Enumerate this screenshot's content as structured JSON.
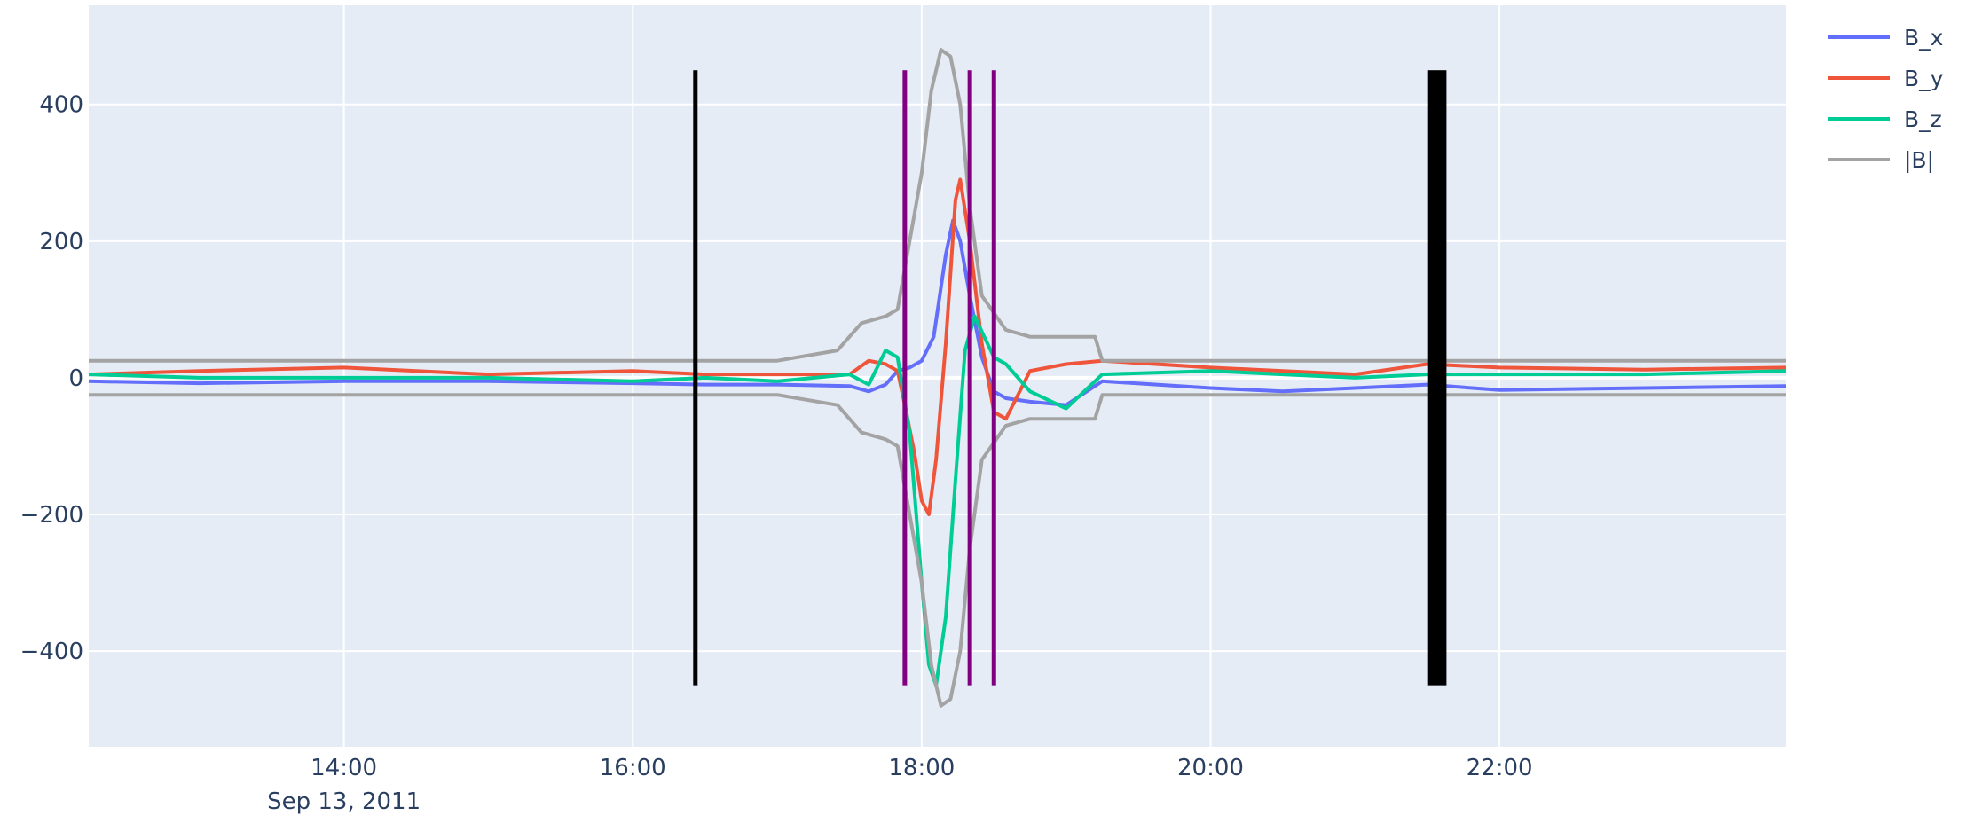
{
  "chart_data": {
    "type": "line",
    "title": "",
    "xlabel": "",
    "ylabel": "",
    "x_axis": {
      "range": [
        "2011-09-13 12:14",
        "2011-09-13 23:59"
      ],
      "tick_values": [
        "14:00",
        "16:00",
        "18:00",
        "20:00",
        "22:00"
      ],
      "tick_labels": [
        "14:00",
        "16:00",
        "18:00",
        "20:00",
        "22:00"
      ],
      "date_label": "Sep 13, 2011"
    },
    "y_axis": {
      "range": [
        -540,
        545
      ],
      "tick_values": [
        400,
        200,
        0,
        -200,
        -400
      ],
      "tick_labels": [
        "400",
        "200",
        "0",
        "−200",
        "−400"
      ]
    },
    "grid": true,
    "legend_position": "top-right",
    "plot_background": "#e5ecf6",
    "series": [
      {
        "name": "B_x",
        "color": "#636efa",
        "points": [
          [
            "12:14",
            -5
          ],
          [
            "13:00",
            -8
          ],
          [
            "14:00",
            -5
          ],
          [
            "15:00",
            -5
          ],
          [
            "16:00",
            -8
          ],
          [
            "16:30",
            -10
          ],
          [
            "17:00",
            -10
          ],
          [
            "17:30",
            -12
          ],
          [
            "17:38",
            -20
          ],
          [
            "17:45",
            -10
          ],
          [
            "17:50",
            10
          ],
          [
            "17:55",
            15
          ],
          [
            "18:00",
            25
          ],
          [
            "18:05",
            60
          ],
          [
            "18:10",
            180
          ],
          [
            "18:13",
            230
          ],
          [
            "18:16",
            200
          ],
          [
            "18:20",
            120
          ],
          [
            "18:25",
            30
          ],
          [
            "18:30",
            -20
          ],
          [
            "18:35",
            -30
          ],
          [
            "18:45",
            -35
          ],
          [
            "19:00",
            -40
          ],
          [
            "19:15",
            -5
          ],
          [
            "20:00",
            -15
          ],
          [
            "20:30",
            -20
          ],
          [
            "21:00",
            -15
          ],
          [
            "21:30",
            -10
          ],
          [
            "22:00",
            -18
          ],
          [
            "23:00",
            -15
          ],
          [
            "23:59",
            -12
          ]
        ]
      },
      {
        "name": "B_y",
        "color": "#ef553b",
        "points": [
          [
            "12:14",
            5
          ],
          [
            "13:00",
            10
          ],
          [
            "14:00",
            15
          ],
          [
            "15:00",
            5
          ],
          [
            "16:00",
            10
          ],
          [
            "16:30",
            5
          ],
          [
            "17:00",
            5
          ],
          [
            "17:30",
            5
          ],
          [
            "17:38",
            25
          ],
          [
            "17:45",
            20
          ],
          [
            "17:50",
            10
          ],
          [
            "17:53",
            -40
          ],
          [
            "17:57",
            -110
          ],
          [
            "18:00",
            -180
          ],
          [
            "18:03",
            -200
          ],
          [
            "18:06",
            -120
          ],
          [
            "18:10",
            50
          ],
          [
            "18:14",
            260
          ],
          [
            "18:16",
            290
          ],
          [
            "18:20",
            200
          ],
          [
            "18:25",
            50
          ],
          [
            "18:30",
            -50
          ],
          [
            "18:35",
            -60
          ],
          [
            "18:45",
            10
          ],
          [
            "19:00",
            20
          ],
          [
            "19:15",
            25
          ],
          [
            "20:00",
            15
          ],
          [
            "20:30",
            10
          ],
          [
            "21:00",
            5
          ],
          [
            "21:30",
            20
          ],
          [
            "22:00",
            15
          ],
          [
            "23:00",
            12
          ],
          [
            "23:59",
            15
          ]
        ]
      },
      {
        "name": "B_z",
        "color": "#00cc96",
        "points": [
          [
            "12:14",
            5
          ],
          [
            "13:00",
            0
          ],
          [
            "14:00",
            0
          ],
          [
            "15:00",
            0
          ],
          [
            "16:00",
            -5
          ],
          [
            "16:30",
            0
          ],
          [
            "17:00",
            -5
          ],
          [
            "17:30",
            5
          ],
          [
            "17:38",
            -10
          ],
          [
            "17:45",
            40
          ],
          [
            "17:50",
            30
          ],
          [
            "17:55",
            -80
          ],
          [
            "18:00",
            -300
          ],
          [
            "18:03",
            -420
          ],
          [
            "18:06",
            -450
          ],
          [
            "18:10",
            -350
          ],
          [
            "18:14",
            -150
          ],
          [
            "18:18",
            40
          ],
          [
            "18:22",
            90
          ],
          [
            "18:26",
            60
          ],
          [
            "18:30",
            30
          ],
          [
            "18:35",
            20
          ],
          [
            "18:45",
            -20
          ],
          [
            "19:00",
            -45
          ],
          [
            "19:15",
            5
          ],
          [
            "20:00",
            10
          ],
          [
            "20:30",
            5
          ],
          [
            "21:00",
            0
          ],
          [
            "21:30",
            5
          ],
          [
            "22:00",
            5
          ],
          [
            "23:00",
            5
          ],
          [
            "23:59",
            10
          ]
        ]
      },
      {
        "name": "|B|",
        "color": "#a3a3a3",
        "points": [
          [
            "12:14",
            25
          ],
          [
            "13:00",
            25
          ],
          [
            "14:00",
            25
          ],
          [
            "15:00",
            25
          ],
          [
            "16:00",
            25
          ],
          [
            "16:30",
            25
          ],
          [
            "17:00",
            25
          ],
          [
            "17:25",
            40
          ],
          [
            "17:35",
            80
          ],
          [
            "17:45",
            90
          ],
          [
            "17:50",
            100
          ],
          [
            "17:55",
            200
          ],
          [
            "18:00",
            300
          ],
          [
            "18:04",
            420
          ],
          [
            "18:08",
            480
          ],
          [
            "18:12",
            470
          ],
          [
            "18:16",
            400
          ],
          [
            "18:20",
            250
          ],
          [
            "18:25",
            120
          ],
          [
            "18:35",
            70
          ],
          [
            "18:45",
            60
          ],
          [
            "19:00",
            60
          ],
          [
            "19:12",
            60
          ],
          [
            "19:15",
            25
          ],
          [
            "20:00",
            25
          ],
          [
            "21:00",
            25
          ],
          [
            "22:00",
            25
          ],
          [
            "23:00",
            25
          ],
          [
            "23:59",
            25
          ]
        ]
      },
      {
        "name": "",
        "color": "#a3a3a3",
        "points": [
          [
            "12:14",
            -25
          ],
          [
            "13:00",
            -25
          ],
          [
            "14:00",
            -25
          ],
          [
            "15:00",
            -25
          ],
          [
            "16:00",
            -25
          ],
          [
            "16:30",
            -25
          ],
          [
            "17:00",
            -25
          ],
          [
            "17:25",
            -40
          ],
          [
            "17:35",
            -80
          ],
          [
            "17:45",
            -90
          ],
          [
            "17:50",
            -100
          ],
          [
            "17:55",
            -200
          ],
          [
            "18:00",
            -300
          ],
          [
            "18:04",
            -420
          ],
          [
            "18:08",
            -480
          ],
          [
            "18:12",
            -470
          ],
          [
            "18:16",
            -400
          ],
          [
            "18:20",
            -250
          ],
          [
            "18:25",
            -120
          ],
          [
            "18:35",
            -70
          ],
          [
            "18:45",
            -60
          ],
          [
            "19:00",
            -60
          ],
          [
            "19:12",
            -60
          ],
          [
            "19:15",
            -25
          ],
          [
            "20:00",
            -25
          ],
          [
            "21:00",
            -25
          ],
          [
            "22:00",
            -25
          ],
          [
            "23:00",
            -25
          ],
          [
            "23:59",
            -25
          ]
        ]
      }
    ],
    "vertical_markers": [
      {
        "from": "16:26",
        "to": "16:26",
        "color": "#000000",
        "y_from": -450,
        "y_to": 450
      },
      {
        "from": "17:53",
        "to": "17:53",
        "color": "#800080",
        "y_from": -450,
        "y_to": 450
      },
      {
        "from": "18:20",
        "to": "18:20",
        "color": "#800080",
        "y_from": -450,
        "y_to": 450
      },
      {
        "from": "18:30",
        "to": "18:30",
        "color": "#800080",
        "y_from": -450,
        "y_to": 450
      },
      {
        "from": "21:30",
        "to": "21:38",
        "color": "#000000",
        "y_from": -450,
        "y_to": 450
      }
    ]
  }
}
